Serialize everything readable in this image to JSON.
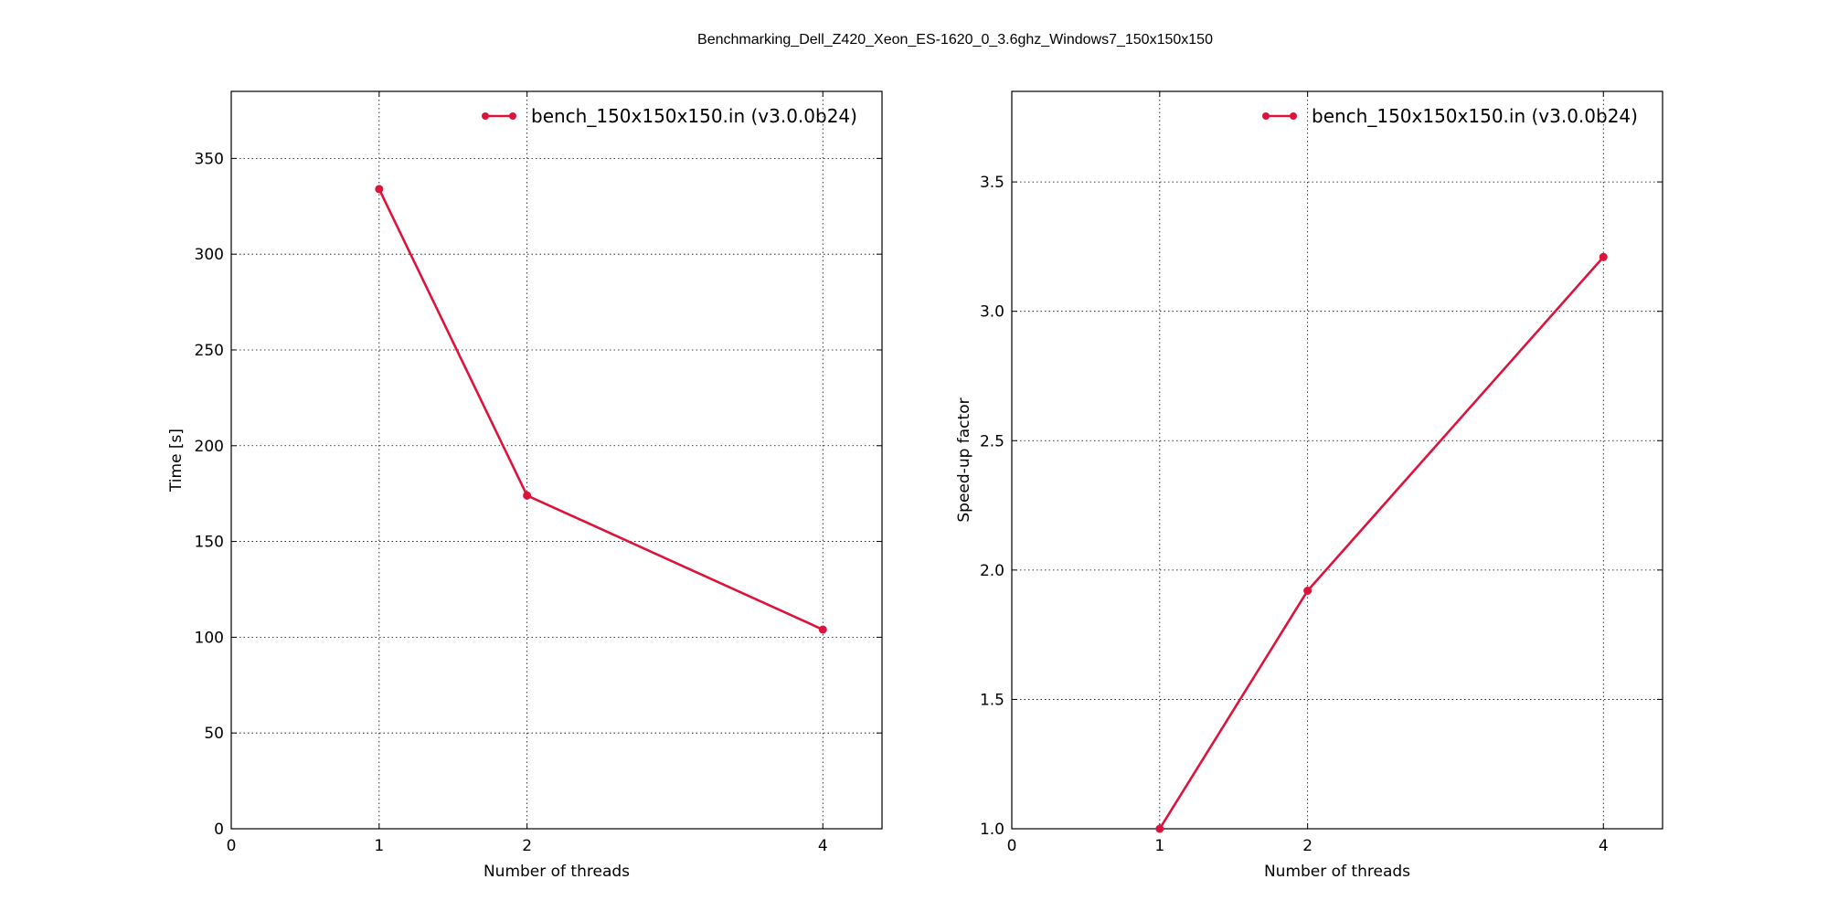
{
  "figure": {
    "title": "Benchmarking_Dell_Z420_Xeon_ES-1620_0_3.6ghz_Windows7_150x150x150",
    "line_color": "#dc143c"
  },
  "chart_data": [
    {
      "type": "line",
      "xlabel": "Number of threads",
      "ylabel": "Time [s]",
      "xlim": [
        0,
        4.4
      ],
      "ylim": [
        0,
        385
      ],
      "xticks": [
        0,
        1,
        2,
        4
      ],
      "yticks": [
        0,
        50,
        100,
        150,
        200,
        250,
        300,
        350
      ],
      "ytick_labels": [
        "0",
        "50",
        "100",
        "150",
        "200",
        "250",
        "300",
        "350"
      ],
      "grid": true,
      "legend_position": "top-right",
      "series": [
        {
          "name": "bench_150x150x150.in (v3.0.0b24)",
          "x": [
            1,
            2,
            4
          ],
          "y": [
            334,
            174,
            104
          ]
        }
      ]
    },
    {
      "type": "line",
      "xlabel": "Number of threads",
      "ylabel": "Speed-up factor",
      "xlim": [
        0,
        4.4
      ],
      "ylim": [
        1.0,
        3.85
      ],
      "xticks": [
        0,
        1,
        2,
        4
      ],
      "yticks": [
        1.0,
        1.5,
        2.0,
        2.5,
        3.0,
        3.5
      ],
      "ytick_labels": [
        "1.0",
        "1.5",
        "2.0",
        "2.5",
        "3.0",
        "3.5"
      ],
      "grid": true,
      "legend_position": "top-right",
      "series": [
        {
          "name": "bench_150x150x150.in (v3.0.0b24)",
          "x": [
            1,
            2,
            4
          ],
          "y": [
            1.0,
            1.92,
            3.21
          ]
        }
      ]
    }
  ]
}
